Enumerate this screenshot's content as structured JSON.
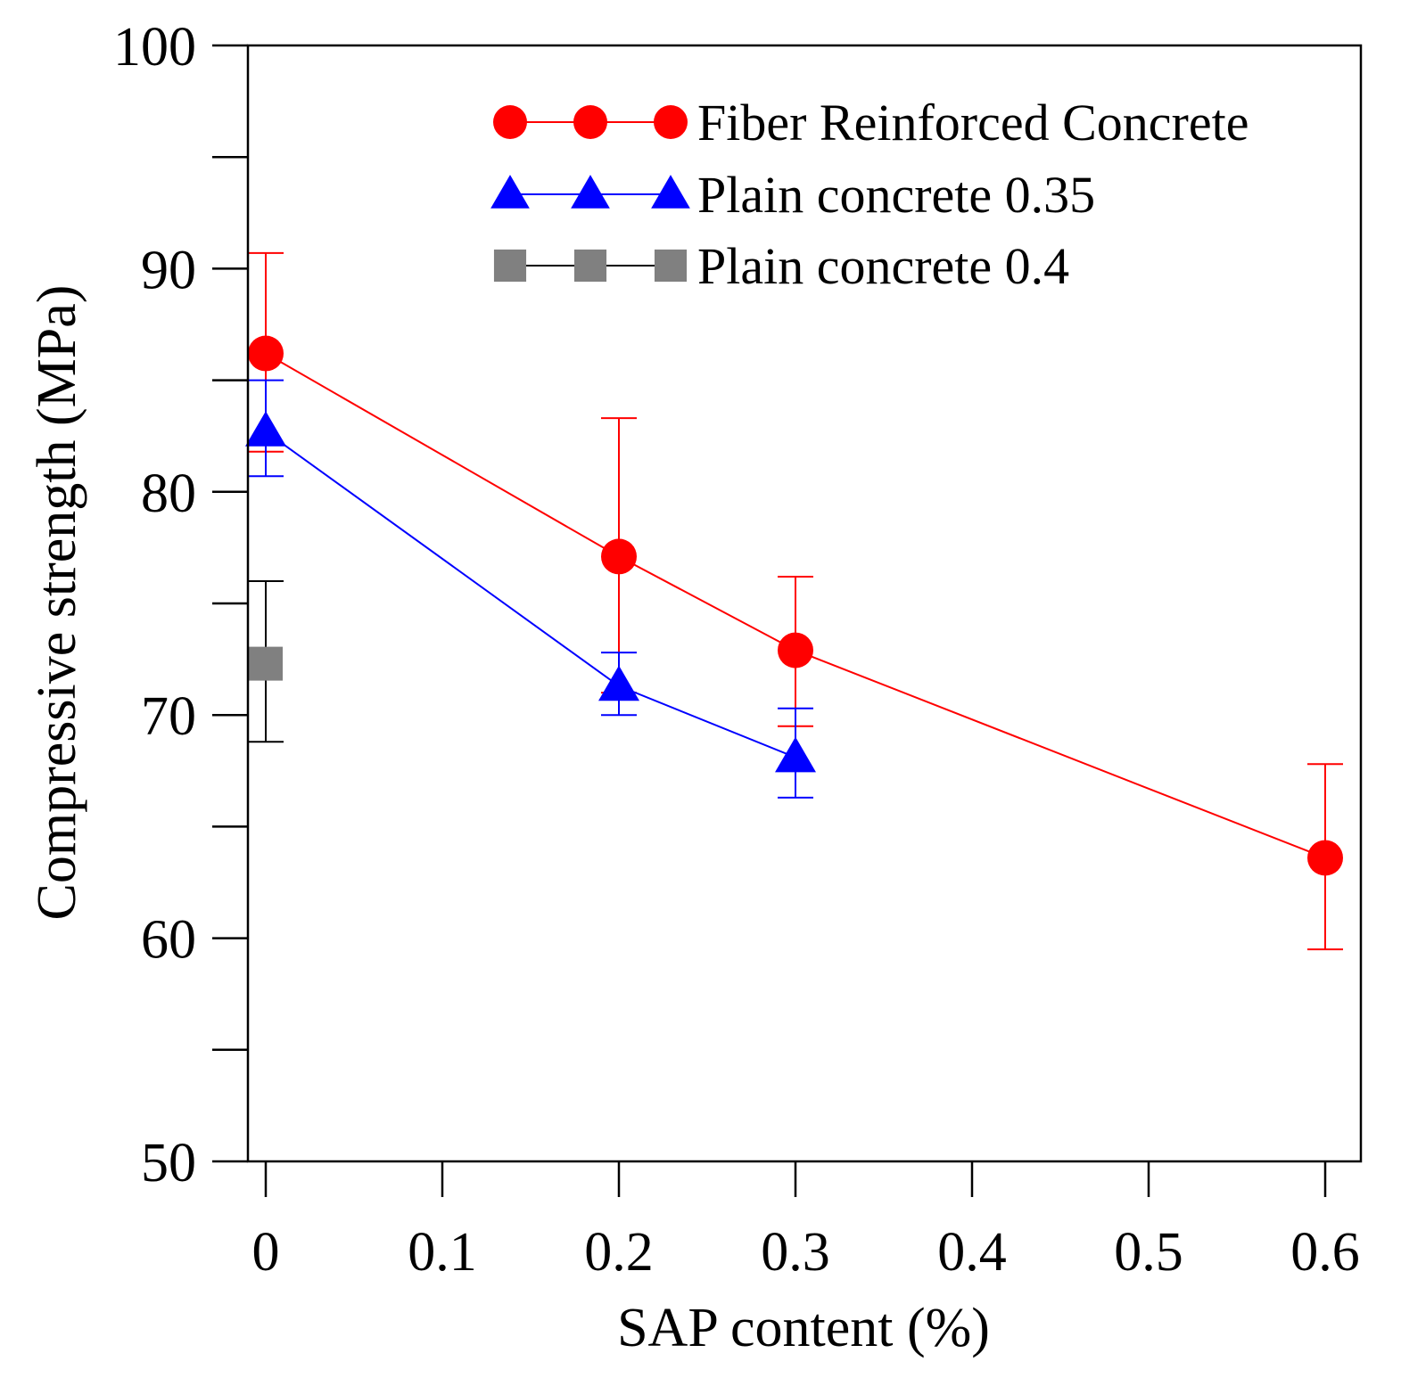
{
  "chart_data": {
    "type": "line",
    "title": "",
    "xlabel": "SAP content (%)",
    "ylabel": "Compressive strength (MPa)",
    "xlim": [
      -0.015,
      0.615
    ],
    "ylim": [
      50,
      100
    ],
    "x_ticks": [
      0,
      0.1,
      0.2,
      0.3,
      0.4,
      0.5,
      0.6
    ],
    "x_tick_labels": [
      "0",
      "0.1",
      "0.2",
      "0.3",
      "0.4",
      "0.5",
      "0.6"
    ],
    "y_ticks": [
      50,
      55,
      60,
      65,
      70,
      75,
      80,
      85,
      90,
      95,
      100
    ],
    "y_tick_labels": [
      "50",
      "",
      "60",
      "",
      "70",
      "",
      "80",
      "",
      "90",
      "",
      "100"
    ],
    "grid": false,
    "legend_position": "top-right",
    "series": [
      {
        "name": "Fiber Reinforced Concrete",
        "color": "#ff0000",
        "marker": "circle",
        "x": [
          0,
          0.2,
          0.3,
          0.6
        ],
        "y": [
          86.2,
          77.1,
          72.9,
          63.6
        ],
        "err_high": [
          90.7,
          83.3,
          76.2,
          67.8
        ],
        "err_low": [
          81.8,
          71.0,
          69.5,
          59.5
        ]
      },
      {
        "name": "Plain concrete 0.35",
        "color": "#0000ff",
        "marker": "triangle",
        "x": [
          0,
          0.2,
          0.3
        ],
        "y": [
          82.7,
          71.3,
          68.1
        ],
        "err_high": [
          85.0,
          72.8,
          70.3
        ],
        "err_low": [
          80.7,
          70.0,
          66.3
        ]
      },
      {
        "name": "Plain concrete 0.4",
        "color": "#808080",
        "marker": "square",
        "x": [
          0
        ],
        "y": [
          72.3
        ],
        "err_high": [
          76.0
        ],
        "err_low": [
          68.8
        ]
      }
    ]
  }
}
